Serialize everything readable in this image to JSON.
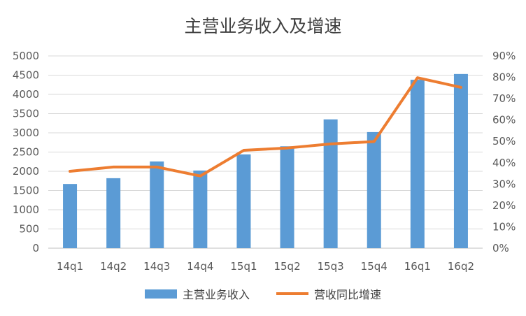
{
  "chart_data": {
    "type": "bar+line",
    "title": "主营业务收入及增速",
    "categories": [
      "14q1",
      "14q2",
      "14q3",
      "14q4",
      "15q1",
      "15q2",
      "15q3",
      "15q4",
      "16q1",
      "16q2"
    ],
    "series": [
      {
        "name": "主营业务收入",
        "type": "bar",
        "axis": "left",
        "color": "#5B9BD5",
        "values": [
          1670,
          1820,
          2255,
          2020,
          2440,
          2650,
          3350,
          3020,
          4380,
          4530
        ]
      },
      {
        "name": "营收同比增速",
        "type": "line",
        "axis": "right",
        "color": "#ED7D31",
        "values": [
          36,
          38,
          38,
          33.8,
          45.8,
          46.9,
          48.8,
          49.9,
          79.8,
          75.3
        ]
      }
    ],
    "left_axis": {
      "ylim": [
        0,
        5000
      ],
      "ticks": [
        "0",
        "500",
        "1000",
        "1500",
        "2000",
        "2500",
        "3000",
        "3500",
        "4000",
        "4500",
        "5000"
      ]
    },
    "right_axis": {
      "ylim": [
        0,
        90
      ],
      "ticks": [
        "0%",
        "10%",
        "20%",
        "30%",
        "40%",
        "50%",
        "60%",
        "70%",
        "80%",
        "90%"
      ]
    },
    "grid": true,
    "legend": "bottom"
  }
}
